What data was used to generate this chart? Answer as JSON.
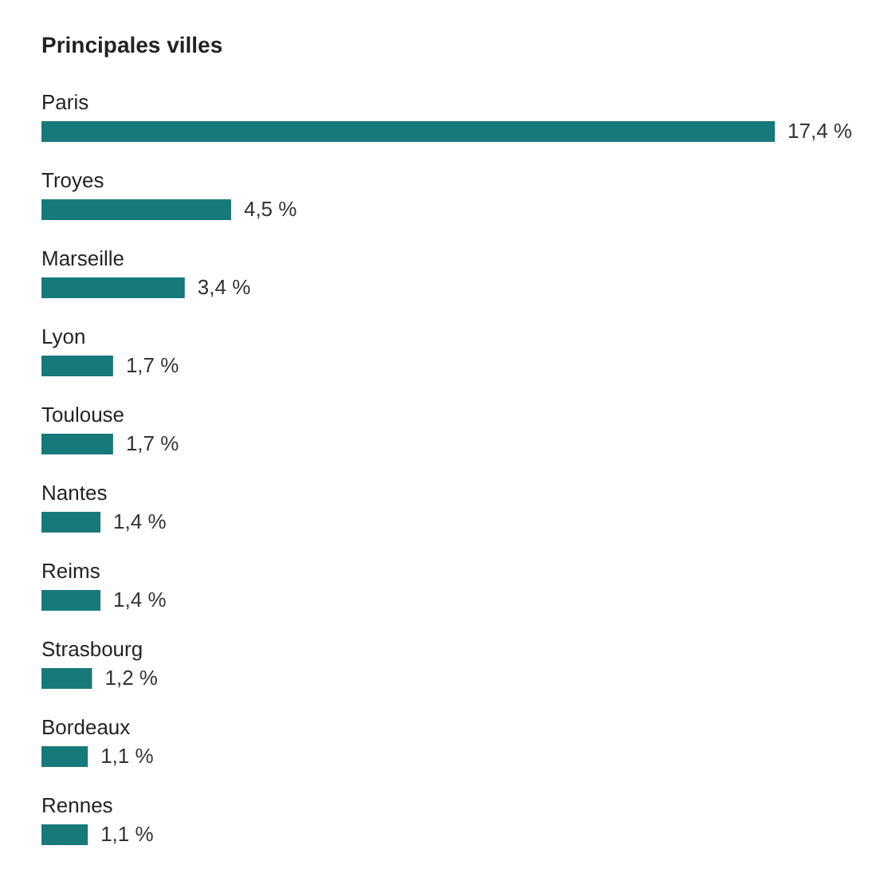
{
  "chart_data": {
    "type": "bar",
    "orientation": "horizontal",
    "title": "Principales villes",
    "categories": [
      "Paris",
      "Troyes",
      "Marseille",
      "Lyon",
      "Toulouse",
      "Nantes",
      "Reims",
      "Strasbourg",
      "Bordeaux",
      "Rennes"
    ],
    "values": [
      17.4,
      4.5,
      3.4,
      1.7,
      1.7,
      1.4,
      1.4,
      1.2,
      1.1,
      1.1
    ],
    "value_labels": [
      "17,4 %",
      "4,5 %",
      "3,4 %",
      "1,7 %",
      "1,7 %",
      "1,4 %",
      "1,4 %",
      "1,2 %",
      "1,1 %",
      "1,1 %"
    ],
    "color": "#17797a"
  }
}
